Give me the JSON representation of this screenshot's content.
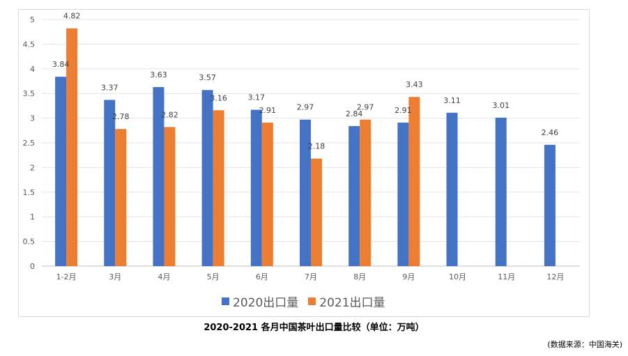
{
  "chart_data": {
    "type": "bar",
    "title": "2020-2021 各月中国茶叶出口量比较（单位：万吨）",
    "xlabel": "",
    "ylabel": "",
    "ylim": [
      0,
      5
    ],
    "yticks": [
      "0",
      "0.5",
      "1",
      "1.5",
      "2",
      "2.5",
      "3",
      "3.5",
      "4",
      "4.5",
      "5"
    ],
    "grid": true,
    "legend_position": "bottom",
    "categories": [
      "1-2月",
      "3月",
      "4月",
      "5月",
      "6月",
      "7月",
      "8月",
      "9月",
      "10月",
      "11月",
      "12月"
    ],
    "series": [
      {
        "name": "2020出口量",
        "color": "#4472c4",
        "values": [
          3.84,
          3.37,
          3.63,
          3.57,
          3.17,
          2.97,
          2.84,
          2.91,
          3.11,
          3.01,
          2.46
        ],
        "labels": [
          "3.84",
          "3.37",
          "3.63",
          "3.57",
          "3.17",
          "2.97",
          "2.84",
          "2.91",
          "3.11",
          "3.01",
          "2.46"
        ]
      },
      {
        "name": "2021出口量",
        "color": "#ed7d31",
        "values": [
          4.82,
          2.78,
          2.82,
          3.16,
          2.91,
          2.18,
          2.97,
          3.43,
          null,
          null,
          null
        ],
        "labels": [
          "4.82",
          "2.78",
          "2.82",
          "3.16",
          "2.91",
          "2.18",
          "2.97",
          "3.43",
          null,
          null,
          null
        ]
      }
    ]
  },
  "source_note": "(数据来源：中国海关)"
}
